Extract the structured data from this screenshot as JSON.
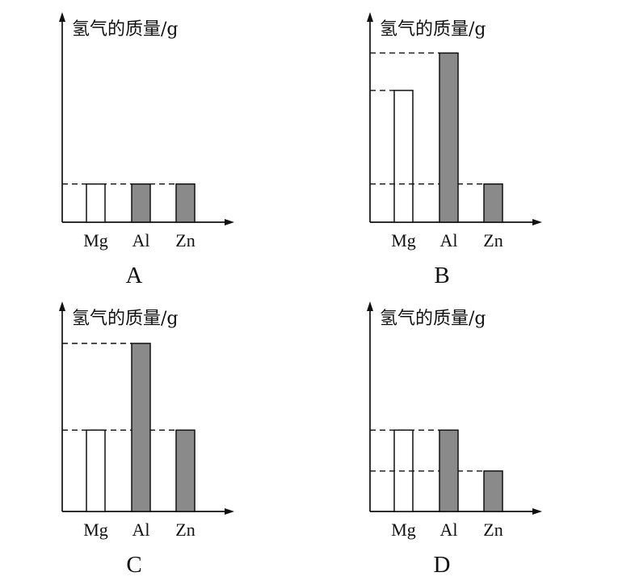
{
  "colors": {
    "axis": "#111111",
    "reference_line": "#111111",
    "bar_outline": "#111111"
  },
  "chart_data": [
    {
      "type": "bar",
      "caption": "A",
      "ylabel": "氢气的质量/g",
      "categories": [
        "Mg",
        "Al",
        "Zn"
      ],
      "values": [
        1,
        1,
        1
      ],
      "ylim": [
        0,
        5.5
      ],
      "grid": false,
      "bar_colors": [
        "#ffffff",
        "#8a8a8a",
        "#8a8a8a"
      ]
    },
    {
      "type": "bar",
      "caption": "B",
      "ylabel": "氢气的质量/g",
      "categories": [
        "Mg",
        "Al",
        "Zn"
      ],
      "values": [
        3.45,
        4.43,
        1
      ],
      "ylim": [
        0,
        5.5
      ],
      "grid": false,
      "bar_colors": [
        "#ffffff",
        "#8a8a8a",
        "#8a8a8a"
      ]
    },
    {
      "type": "bar",
      "caption": "C",
      "ylabel": "氢气的质量/g",
      "categories": [
        "Mg",
        "Al",
        "Zn"
      ],
      "values": [
        2.13,
        4.4,
        2.13
      ],
      "ylim": [
        0,
        5.5
      ],
      "grid": false,
      "bar_colors": [
        "#ffffff",
        "#8a8a8a",
        "#8a8a8a"
      ]
    },
    {
      "type": "bar",
      "caption": "D",
      "ylabel": "氢气的质量/g",
      "categories": [
        "Mg",
        "Al",
        "Zn"
      ],
      "values": [
        2.13,
        2.13,
        1.06
      ],
      "ylim": [
        0,
        5.5
      ],
      "grid": false,
      "bar_colors": [
        "#ffffff",
        "#8a8a8a",
        "#8a8a8a"
      ]
    }
  ]
}
